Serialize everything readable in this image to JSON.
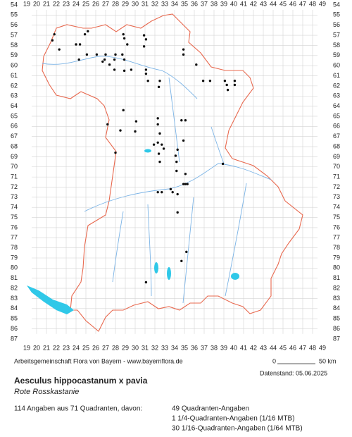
{
  "map": {
    "columns": [
      19,
      20,
      21,
      22,
      23,
      24,
      25,
      26,
      27,
      28,
      29,
      30,
      31,
      32,
      33,
      34,
      35,
      36,
      37,
      38,
      39,
      40,
      41,
      42,
      43,
      44,
      45,
      46,
      47,
      48,
      49
    ],
    "rows": [
      54,
      55,
      56,
      57,
      58,
      59,
      60,
      61,
      62,
      63,
      64,
      65,
      66,
      67,
      68,
      69,
      70,
      71,
      72,
      73,
      74,
      75,
      76,
      77,
      78,
      79,
      80,
      81,
      82,
      83,
      84,
      85,
      86,
      87
    ],
    "dots": [
      [
        21.8,
        56.9
      ],
      [
        21.6,
        57.5
      ],
      [
        22.3,
        58.4
      ],
      [
        24.0,
        57.9
      ],
      [
        24.4,
        57.9
      ],
      [
        24.9,
        56.9
      ],
      [
        25.2,
        56.6
      ],
      [
        24.3,
        59.4
      ],
      [
        25.1,
        58.9
      ],
      [
        26.1,
        58.9
      ],
      [
        27.0,
        58.9
      ],
      [
        28.0,
        58.9
      ],
      [
        28.7,
        58.9
      ],
      [
        28.9,
        59.4
      ],
      [
        26.9,
        59.4
      ],
      [
        27.9,
        59.4
      ],
      [
        27.4,
        59.9
      ],
      [
        27.9,
        60.4
      ],
      [
        28.9,
        60.5
      ],
      [
        29.6,
        60.4
      ],
      [
        31.1,
        60.4
      ],
      [
        26.7,
        59.6
      ],
      [
        28.8,
        56.9
      ],
      [
        28.9,
        57.3
      ],
      [
        29.2,
        57.9
      ],
      [
        30.9,
        57.0
      ],
      [
        31.1,
        57.4
      ],
      [
        30.9,
        58.1
      ],
      [
        34.9,
        58.9
      ],
      [
        36.2,
        59.9
      ],
      [
        36.9,
        61.5
      ],
      [
        37.6,
        61.5
      ],
      [
        39.1,
        61.5
      ],
      [
        40.1,
        61.5
      ],
      [
        40.1,
        61.9
      ],
      [
        39.4,
        62.4
      ],
      [
        39.3,
        61.9
      ],
      [
        34.9,
        58.4
      ],
      [
        31.1,
        60.8
      ],
      [
        31.3,
        61.5
      ],
      [
        32.5,
        61.5
      ],
      [
        32.4,
        62.1
      ],
      [
        28.8,
        64.4
      ],
      [
        30.1,
        65.5
      ],
      [
        27.2,
        65.8
      ],
      [
        28.5,
        66.4
      ],
      [
        30.0,
        66.5
      ],
      [
        32.3,
        65.2
      ],
      [
        32.3,
        65.8
      ],
      [
        32.5,
        66.7
      ],
      [
        35.1,
        65.4
      ],
      [
        34.7,
        65.4
      ],
      [
        34.9,
        67.4
      ],
      [
        32.3,
        67.6
      ],
      [
        31.9,
        67.8
      ],
      [
        32.7,
        67.8
      ],
      [
        32.9,
        68.2
      ],
      [
        32.4,
        68.7
      ],
      [
        32.5,
        69.5
      ],
      [
        34.3,
        68.3
      ],
      [
        34.1,
        68.9
      ],
      [
        34.2,
        69.5
      ],
      [
        34.2,
        70.4
      ],
      [
        28.0,
        68.6
      ],
      [
        35.1,
        70.7
      ],
      [
        35.1,
        71.7
      ],
      [
        34.9,
        71.7
      ],
      [
        35.3,
        71.7
      ],
      [
        33.6,
        72.2
      ],
      [
        33.8,
        72.5
      ],
      [
        34.3,
        72.7
      ],
      [
        32.7,
        72.5
      ],
      [
        32.3,
        72.5
      ],
      [
        34.3,
        74.5
      ],
      [
        34.7,
        79.3
      ],
      [
        35.2,
        78.4
      ],
      [
        31.1,
        81.4
      ],
      [
        38.9,
        69.7
      ]
    ]
  },
  "footer": {
    "credit": "Arbeitsgemeinschaft Flora von Bayern - www.bayernflora.de",
    "scale_start": "0",
    "scale_end": "50 km",
    "date": "Datenstand: 05.06.2025"
  },
  "species": {
    "name": "Aesculus hippocastanum x pavia",
    "common_name": "Rote Rosskastanie"
  },
  "summary": {
    "total": "114 Angaben aus 71 Quadranten, davon:",
    "lines": [
      "49 Quadranten-Angaben",
      "1 1/4-Quadranten-Angaben (1/16 MTB)",
      "30 1/16-Quadranten-Angaben (1/64 MTB)"
    ]
  }
}
